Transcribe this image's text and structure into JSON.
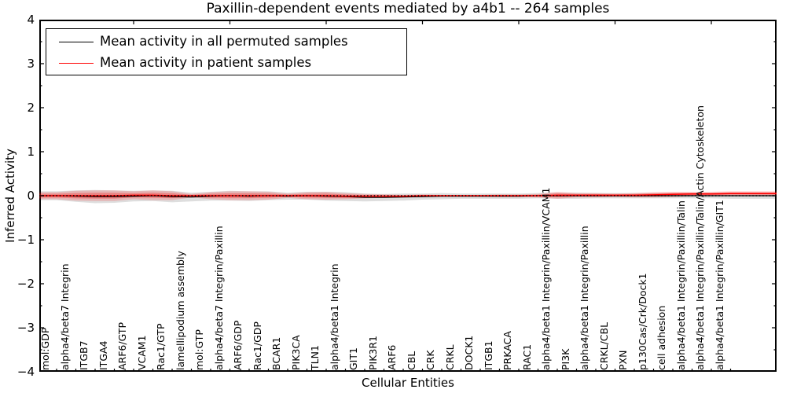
{
  "page": {
    "background": "#ffffff"
  },
  "chart_data": {
    "type": "line",
    "title": "Paxillin-dependent events mediated by a4b1 -- 264 samples",
    "xlabel": "Cellular Entities",
    "ylabel": "Inferred Activity",
    "ylim": [
      -4,
      4
    ],
    "y_major_ticks": [
      4,
      3,
      2,
      1,
      0,
      -1,
      -2,
      -3,
      -4
    ],
    "y_tick_labels": [
      "4",
      "3",
      "2",
      "1",
      "0",
      "−1",
      "−2",
      "−3",
      "−4"
    ],
    "y_minor_tick_step": 0.5,
    "grid": false,
    "legend_position": "upper left",
    "categories": [
      "mol:GDP",
      "alpha4/beta7 Integrin",
      "ITGB7",
      "ITGA4",
      "ARF6/GTP",
      "VCAM1",
      "Rac1/GTP",
      "lamellipodium assembly",
      "mol:GTP",
      "alpha4/beta7 Integrin/Paxillin",
      "ARF6/GDP",
      "Rac1/GDP",
      "BCAR1",
      "PIK3CA",
      "TLN1",
      "alpha4/beta1 Integrin",
      "GIT1",
      "PIK3R1",
      "ARF6",
      "CBL",
      "CRK",
      "CRKL",
      "DOCK1",
      "ITGB1",
      "PRKACA",
      "RAC1",
      "alpha4/beta1 Integrin/Paxillin/VCAM1",
      "PI3K",
      "alpha4/beta1 Integrin/Paxillin",
      "CRKL/CBL",
      "PXN",
      "p130Cas/Crk/Dock1",
      "cell adhesion",
      "alpha4/beta1 Integrin/Paxillin/Talin",
      "alpha4/beta1 Integrin/Paxillin/Talin/Actin Cytoskeleton",
      "alpha4/beta1 Integrin/Paxillin/GIT1"
    ],
    "series": [
      {
        "name": "Mean activity in all permuted samples",
        "color": "#000000",
        "band_color": "rgba(0,0,0,0.13)",
        "values": [
          0,
          -0.01,
          -0.02,
          -0.02,
          -0.01,
          0,
          -0.02,
          -0.03,
          -0.01,
          0,
          -0.01,
          0,
          -0.01,
          0,
          -0.01,
          -0.02,
          -0.04,
          -0.04,
          -0.03,
          -0.02,
          -0.01,
          -0.01,
          -0.01,
          -0.01,
          -0.01,
          0,
          0,
          0,
          0,
          0,
          0,
          0,
          0,
          0,
          0,
          0
        ],
        "band_halfwidth": [
          0.1,
          0.13,
          0.15,
          0.14,
          0.12,
          0.12,
          0.13,
          0.1,
          0.1,
          0.11,
          0.11,
          0.1,
          0.08,
          0.09,
          0.1,
          0.1,
          0.09,
          0.08,
          0.08,
          0.07,
          0.07,
          0.06,
          0.06,
          0.06,
          0.06,
          0.06,
          0.07,
          0.07,
          0.06,
          0.06,
          0.06,
          0.06,
          0.06,
          0.06,
          0.06,
          0.07
        ]
      },
      {
        "name": "Mean activity in patient samples",
        "color": "#ff0000",
        "band_color": "rgba(255,0,0,0.18)",
        "band_inner_color": "rgba(255,0,0,0.28)",
        "values": [
          0,
          0,
          0,
          0,
          0.01,
          0.01,
          0,
          0,
          0,
          0,
          0,
          0,
          0,
          0,
          0,
          -0.01,
          -0.01,
          -0.01,
          -0.01,
          0,
          0,
          0,
          0,
          0,
          0,
          0,
          0.01,
          0.01,
          0.01,
          0.01,
          0.01,
          0.02,
          0.03,
          0.04,
          0.04,
          0.05
        ],
        "band_halfwidth": [
          0.08,
          0.11,
          0.12,
          0.12,
          0.09,
          0.11,
          0.1,
          0.04,
          0.08,
          0.1,
          0.1,
          0.09,
          0.05,
          0.08,
          0.09,
          0.07,
          0.05,
          0.04,
          0.03,
          0.03,
          0.02,
          0.02,
          0.02,
          0.03,
          0.03,
          0.04,
          0.08,
          0.05,
          0.05,
          0.04,
          0.05,
          0.06,
          0.06,
          0.05,
          0.05,
          0.05
        ]
      }
    ],
    "reference_line": {
      "y": 0,
      "style": "dotted",
      "color": "#000000"
    },
    "layout": {
      "top_tick_indices": [
        4,
        9,
        14,
        19,
        24,
        29,
        34
      ]
    }
  }
}
